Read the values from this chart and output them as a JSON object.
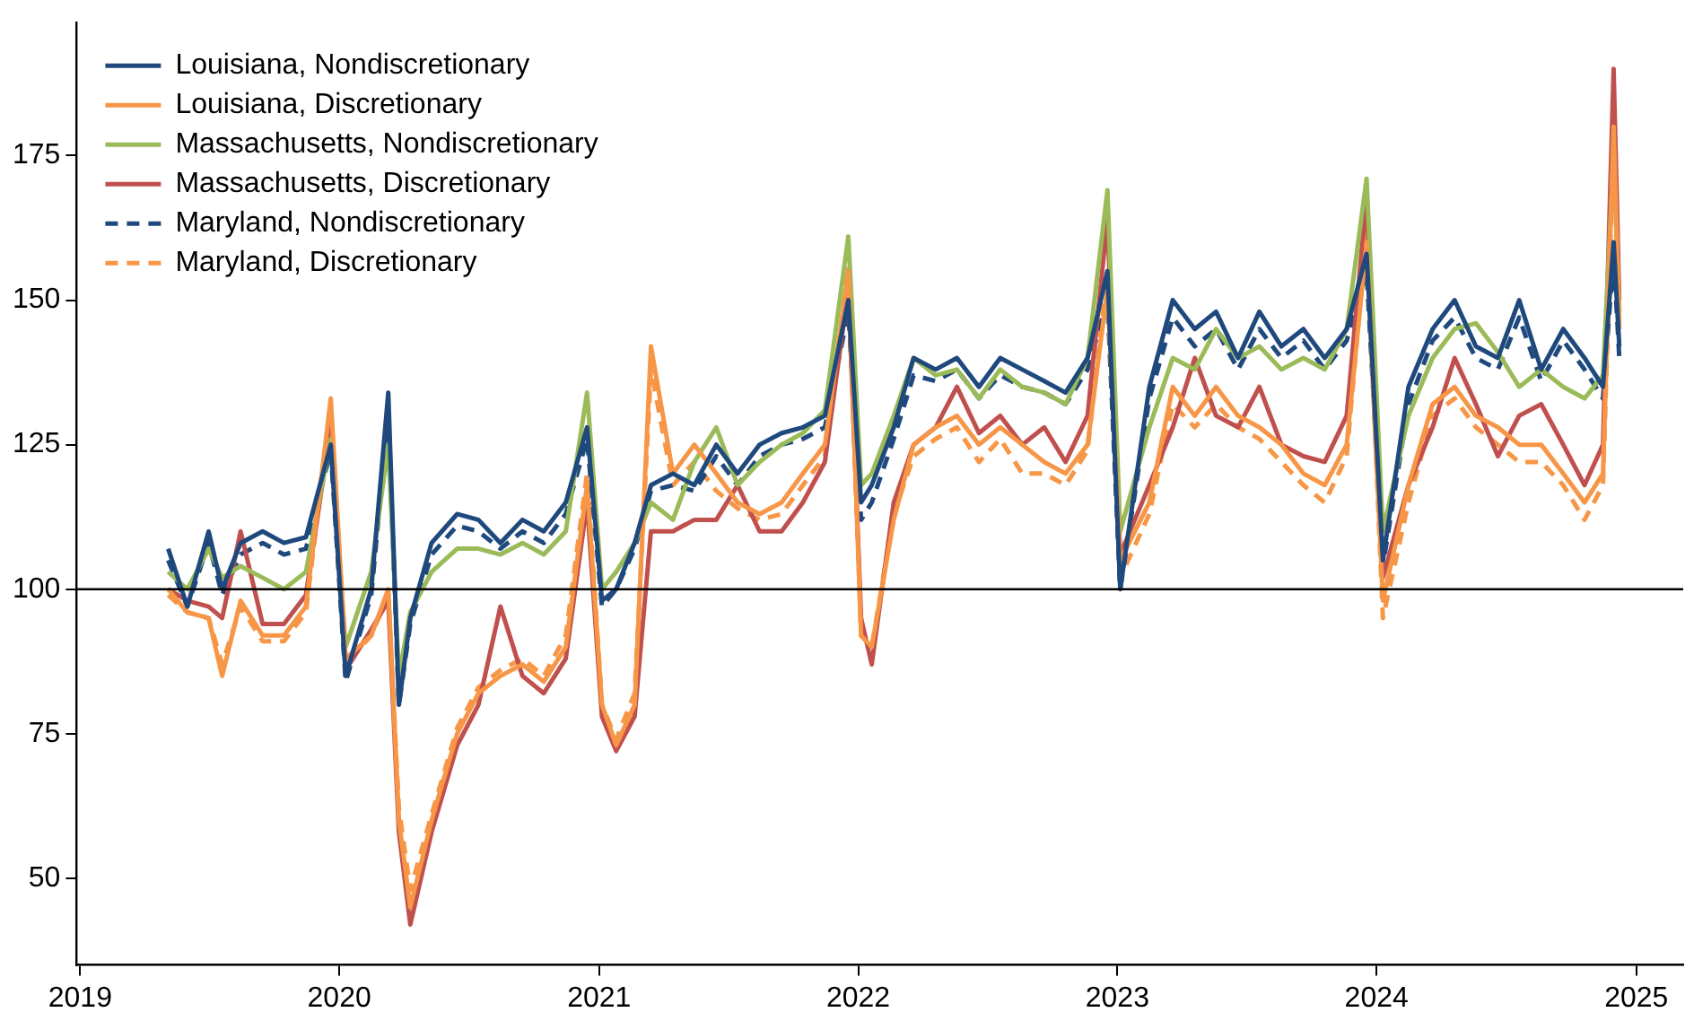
{
  "chart_data": {
    "type": "line",
    "xlim": [
      "2018-12-27",
      "2025-03-08"
    ],
    "xticks": [
      "2019",
      "2020",
      "2021",
      "2022",
      "2023",
      "2024",
      "2025"
    ],
    "ylim": [
      35,
      198
    ],
    "yticks": [
      50,
      75,
      100,
      125,
      150,
      175
    ],
    "grid": false,
    "legend": "top left",
    "marker": "none",
    "ref_lines": [
      {
        "axis": "y",
        "value": 100,
        "color": "#000000"
      }
    ],
    "x": [
      "2019-05-05",
      "2019-06-01",
      "2019-07-01",
      "2019-07-20",
      "2019-08-15",
      "2019-09-15",
      "2019-10-15",
      "2019-11-15",
      "2019-12-20",
      "2020-01-10",
      "2020-02-15",
      "2020-03-10",
      "2020-03-25",
      "2020-04-10",
      "2020-05-10",
      "2020-06-15",
      "2020-07-15",
      "2020-08-15",
      "2020-09-15",
      "2020-10-15",
      "2020-11-15",
      "2020-12-15",
      "2021-01-05",
      "2021-01-25",
      "2021-02-20",
      "2021-03-15",
      "2021-04-15",
      "2021-05-15",
      "2021-06-15",
      "2021-07-15",
      "2021-08-15",
      "2021-09-15",
      "2021-10-15",
      "2021-11-15",
      "2021-12-18",
      "2022-01-05",
      "2022-01-20",
      "2022-02-20",
      "2022-03-20",
      "2022-04-20",
      "2022-05-20",
      "2022-06-20",
      "2022-07-20",
      "2022-08-20",
      "2022-09-20",
      "2022-10-20",
      "2022-11-20",
      "2022-12-18",
      "2023-01-05",
      "2023-02-15",
      "2023-03-20",
      "2023-04-20",
      "2023-05-20",
      "2023-06-20",
      "2023-07-20",
      "2023-08-20",
      "2023-09-20",
      "2023-10-20",
      "2023-11-20",
      "2023-12-18",
      "2024-01-10",
      "2024-02-15",
      "2024-03-20",
      "2024-04-20",
      "2024-05-20",
      "2024-06-20",
      "2024-07-20",
      "2024-08-20",
      "2024-09-20",
      "2024-10-20",
      "2024-11-15",
      "2024-11-30",
      "2024-12-08"
    ],
    "series": [
      {
        "name": "Louisiana, Nondiscretionary",
        "color": "#1f497d",
        "line_style": "solid",
        "values": [
          107,
          97,
          110,
          100,
          108,
          110,
          108,
          109,
          125,
          85,
          100,
          134,
          80,
          95,
          108,
          113,
          112,
          108,
          112,
          110,
          115,
          128,
          98,
          100,
          108,
          118,
          120,
          118,
          125,
          120,
          125,
          127,
          128,
          130,
          150,
          115,
          118,
          128,
          140,
          138,
          140,
          135,
          140,
          138,
          136,
          134,
          140,
          155,
          100,
          135,
          150,
          145,
          148,
          140,
          148,
          142,
          145,
          140,
          145,
          158,
          105,
          135,
          145,
          150,
          142,
          140,
          150,
          138,
          145,
          140,
          135,
          160,
          142
        ]
      },
      {
        "name": "Louisiana, Discretionary",
        "color": "#f79646",
        "line_style": "solid",
        "values": [
          100,
          96,
          95,
          85,
          98,
          92,
          92,
          97,
          133,
          88,
          92,
          100,
          60,
          45,
          60,
          75,
          82,
          85,
          87,
          84,
          90,
          118,
          80,
          73,
          80,
          142,
          120,
          125,
          120,
          115,
          113,
          115,
          120,
          125,
          155,
          92,
          90,
          112,
          125,
          128,
          130,
          125,
          128,
          125,
          122,
          120,
          125,
          152,
          105,
          115,
          135,
          130,
          135,
          130,
          128,
          125,
          120,
          118,
          125,
          160,
          98,
          118,
          132,
          135,
          130,
          128,
          125,
          125,
          120,
          115,
          120,
          180,
          145
        ]
      },
      {
        "name": "Massachusetts, Nondiscretionary",
        "color": "#9bbb59",
        "line_style": "solid",
        "values": [
          103,
          100,
          107,
          102,
          104,
          102,
          100,
          103,
          126,
          90,
          103,
          125,
          85,
          96,
          103,
          107,
          107,
          106,
          108,
          106,
          110,
          134,
          100,
          103,
          108,
          115,
          112,
          122,
          128,
          118,
          122,
          125,
          127,
          131,
          161,
          118,
          120,
          130,
          140,
          137,
          138,
          133,
          138,
          135,
          134,
          132,
          140,
          169,
          110,
          128,
          140,
          138,
          145,
          140,
          142,
          138,
          140,
          138,
          145,
          171,
          110,
          130,
          140,
          145,
          146,
          141,
          135,
          138,
          135,
          133,
          137,
          175,
          148
        ]
      },
      {
        "name": "Massachusetts, Discretionary",
        "color": "#c0504d",
        "line_style": "solid",
        "values": [
          100,
          98,
          97,
          95,
          110,
          94,
          94,
          99,
          128,
          86,
          93,
          98,
          58,
          42,
          58,
          73,
          80,
          97,
          85,
          82,
          88,
          115,
          78,
          72,
          78,
          110,
          110,
          112,
          112,
          118,
          110,
          110,
          115,
          122,
          152,
          95,
          87,
          115,
          125,
          128,
          135,
          127,
          130,
          125,
          128,
          122,
          130,
          164,
          106,
          118,
          128,
          140,
          130,
          128,
          135,
          125,
          123,
          122,
          130,
          168,
          102,
          118,
          128,
          140,
          132,
          123,
          130,
          132,
          125,
          118,
          125,
          190,
          150
        ]
      },
      {
        "name": "Maryland, Nondiscretionary",
        "color": "#1f497d",
        "line_style": "dashed",
        "values": [
          105,
          97,
          108,
          99,
          106,
          108,
          106,
          107,
          124,
          84,
          99,
          130,
          80,
          94,
          106,
          111,
          110,
          107,
          110,
          108,
          113,
          126,
          97,
          100,
          107,
          117,
          118,
          117,
          123,
          118,
          123,
          125,
          126,
          128,
          148,
          112,
          115,
          126,
          137,
          136,
          138,
          133,
          137,
          135,
          134,
          132,
          138,
          150,
          100,
          133,
          147,
          142,
          145,
          138,
          145,
          140,
          143,
          138,
          143,
          155,
          104,
          132,
          143,
          147,
          140,
          138,
          147,
          136,
          143,
          138,
          133,
          158,
          140
        ]
      },
      {
        "name": "Maryland, Discretionary",
        "color": "#f79646",
        "line_style": "dashed",
        "values": [
          99,
          96,
          95,
          87,
          97,
          91,
          91,
          96,
          132,
          87,
          92,
          99,
          62,
          48,
          61,
          76,
          83,
          86,
          88,
          85,
          92,
          120,
          80,
          74,
          82,
          138,
          118,
          122,
          117,
          114,
          112,
          113,
          118,
          123,
          156,
          92,
          90,
          113,
          123,
          126,
          128,
          122,
          126,
          120,
          120,
          118,
          124,
          155,
          102,
          113,
          132,
          128,
          132,
          128,
          126,
          122,
          118,
          115,
          123,
          162,
          95,
          115,
          130,
          133,
          128,
          125,
          122,
          122,
          118,
          112,
          118,
          178,
          146
        ]
      }
    ]
  }
}
